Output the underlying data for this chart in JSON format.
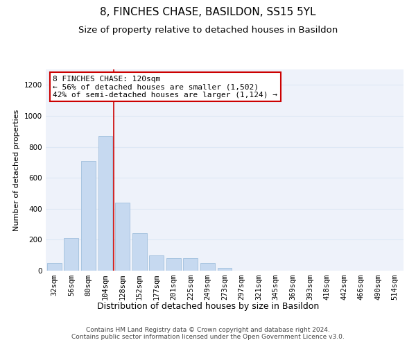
{
  "title": "8, FINCHES CHASE, BASILDON, SS15 5YL",
  "subtitle": "Size of property relative to detached houses in Basildon",
  "xlabel": "Distribution of detached houses by size in Basildon",
  "ylabel": "Number of detached properties",
  "categories": [
    "32sqm",
    "56sqm",
    "80sqm",
    "104sqm",
    "128sqm",
    "152sqm",
    "177sqm",
    "201sqm",
    "225sqm",
    "249sqm",
    "273sqm",
    "297sqm",
    "321sqm",
    "345sqm",
    "369sqm",
    "393sqm",
    "418sqm",
    "442sqm",
    "466sqm",
    "490sqm",
    "514sqm"
  ],
  "values": [
    50,
    210,
    710,
    870,
    440,
    240,
    100,
    80,
    80,
    50,
    20,
    0,
    0,
    0,
    0,
    0,
    0,
    0,
    0,
    0,
    0
  ],
  "bar_color": "#c6d9f0",
  "bar_edge_color": "#a8c4e0",
  "vline_x": 3.5,
  "vline_color": "#cc0000",
  "annotation_text": "8 FINCHES CHASE: 120sqm\n← 56% of detached houses are smaller (1,502)\n42% of semi-detached houses are larger (1,124) →",
  "annotation_box_color": "#ffffff",
  "annotation_box_edge": "#cc0000",
  "ylim": [
    0,
    1300
  ],
  "yticks": [
    0,
    200,
    400,
    600,
    800,
    1000,
    1200
  ],
  "grid_color": "#dde8f5",
  "background_color": "#eef2fa",
  "footer_text": "Contains HM Land Registry data © Crown copyright and database right 2024.\nContains public sector information licensed under the Open Government Licence v3.0.",
  "title_fontsize": 11,
  "subtitle_fontsize": 9.5,
  "xlabel_fontsize": 9,
  "ylabel_fontsize": 8,
  "tick_fontsize": 7.5,
  "annotation_fontsize": 8,
  "footer_fontsize": 6.5
}
